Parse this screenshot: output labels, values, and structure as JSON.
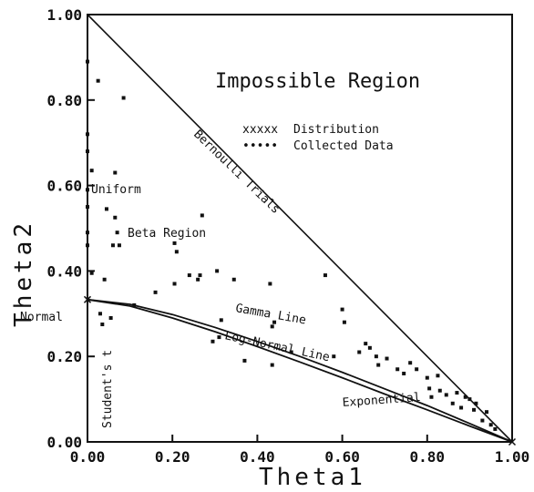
{
  "chart_data": {
    "type": "scatter",
    "xlabel": "Theta1",
    "ylabel": "Theta2",
    "xlim": [
      0,
      1
    ],
    "ylim": [
      0,
      1
    ],
    "xticks": [
      "0.00",
      "0.20",
      "0.40",
      "0.60",
      "0.80",
      "1.00"
    ],
    "yticks": [
      "0.00",
      "0.20",
      "0.40",
      "0.60",
      "0.80",
      "1.00"
    ],
    "grid": false,
    "legend": {
      "placement": "top-right",
      "entries": [
        {
          "marker": "xxxxx",
          "label": "Distribution"
        },
        {
          "marker": "•••••",
          "label": "Collected Data"
        }
      ]
    },
    "annotations": {
      "impossible_region": "Impossible Region",
      "bernoulli": "Bernoulli Trials",
      "uniform": "Uniform",
      "beta_region": "Beta Region",
      "normal": "Normal",
      "gamma": "Gamma Line",
      "lognormal": "Log-Normal Line",
      "students_t": "Student's t",
      "exponential": "Exponential"
    },
    "lines": {
      "bernoulli": [
        [
          0,
          1
        ],
        [
          1,
          0
        ]
      ],
      "gamma": [
        [
          0,
          0.333
        ],
        [
          0.1,
          0.322
        ],
        [
          0.2,
          0.298
        ],
        [
          0.3,
          0.268
        ],
        [
          0.4,
          0.235
        ],
        [
          0.5,
          0.2
        ],
        [
          0.6,
          0.163
        ],
        [
          0.7,
          0.124
        ],
        [
          0.8,
          0.085
        ],
        [
          0.9,
          0.043
        ],
        [
          1,
          0
        ]
      ],
      "lognormal": [
        [
          0,
          0.333
        ],
        [
          0.1,
          0.318
        ],
        [
          0.2,
          0.29
        ],
        [
          0.3,
          0.258
        ],
        [
          0.4,
          0.223
        ],
        [
          0.5,
          0.187
        ],
        [
          0.6,
          0.15
        ],
        [
          0.7,
          0.112
        ],
        [
          0.8,
          0.075
        ],
        [
          0.9,
          0.037
        ],
        [
          1,
          0
        ]
      ]
    },
    "distribution_points": [
      {
        "x": 0.0,
        "y": 0.333
      },
      {
        "x": 1.0,
        "y": 0.0
      }
    ],
    "collected_points": [
      {
        "x": 0.0,
        "y": 0.89
      },
      {
        "x": 0.0,
        "y": 0.72
      },
      {
        "x": 0.0,
        "y": 0.68
      },
      {
        "x": 0.0,
        "y": 0.59
      },
      {
        "x": 0.0,
        "y": 0.55
      },
      {
        "x": 0.0,
        "y": 0.49
      },
      {
        "x": 0.0,
        "y": 0.46
      },
      {
        "x": 0.01,
        "y": 0.635
      },
      {
        "x": 0.01,
        "y": 0.395
      },
      {
        "x": 0.025,
        "y": 0.845
      },
      {
        "x": 0.03,
        "y": 0.3
      },
      {
        "x": 0.035,
        "y": 0.275
      },
      {
        "x": 0.04,
        "y": 0.38
      },
      {
        "x": 0.045,
        "y": 0.545
      },
      {
        "x": 0.055,
        "y": 0.29
      },
      {
        "x": 0.06,
        "y": 0.46
      },
      {
        "x": 0.065,
        "y": 0.63
      },
      {
        "x": 0.065,
        "y": 0.525
      },
      {
        "x": 0.07,
        "y": 0.49
      },
      {
        "x": 0.075,
        "y": 0.46
      },
      {
        "x": 0.085,
        "y": 0.805
      },
      {
        "x": 0.11,
        "y": 0.32
      },
      {
        "x": 0.16,
        "y": 0.35
      },
      {
        "x": 0.205,
        "y": 0.465
      },
      {
        "x": 0.205,
        "y": 0.37
      },
      {
        "x": 0.21,
        "y": 0.445
      },
      {
        "x": 0.24,
        "y": 0.39
      },
      {
        "x": 0.26,
        "y": 0.38
      },
      {
        "x": 0.265,
        "y": 0.39
      },
      {
        "x": 0.27,
        "y": 0.53
      },
      {
        "x": 0.295,
        "y": 0.235
      },
      {
        "x": 0.305,
        "y": 0.4
      },
      {
        "x": 0.31,
        "y": 0.245
      },
      {
        "x": 0.315,
        "y": 0.285
      },
      {
        "x": 0.345,
        "y": 0.38
      },
      {
        "x": 0.37,
        "y": 0.19
      },
      {
        "x": 0.43,
        "y": 0.37
      },
      {
        "x": 0.435,
        "y": 0.27
      },
      {
        "x": 0.435,
        "y": 0.18
      },
      {
        "x": 0.44,
        "y": 0.28
      },
      {
        "x": 0.48,
        "y": 0.21
      },
      {
        "x": 0.56,
        "y": 0.39
      },
      {
        "x": 0.58,
        "y": 0.2
      },
      {
        "x": 0.6,
        "y": 0.31
      },
      {
        "x": 0.605,
        "y": 0.28
      },
      {
        "x": 0.64,
        "y": 0.21
      },
      {
        "x": 0.655,
        "y": 0.23
      },
      {
        "x": 0.665,
        "y": 0.22
      },
      {
        "x": 0.68,
        "y": 0.2
      },
      {
        "x": 0.685,
        "y": 0.18
      },
      {
        "x": 0.705,
        "y": 0.195
      },
      {
        "x": 0.73,
        "y": 0.17
      },
      {
        "x": 0.745,
        "y": 0.16
      },
      {
        "x": 0.76,
        "y": 0.185
      },
      {
        "x": 0.775,
        "y": 0.17
      },
      {
        "x": 0.8,
        "y": 0.15
      },
      {
        "x": 0.805,
        "y": 0.125
      },
      {
        "x": 0.81,
        "y": 0.105
      },
      {
        "x": 0.825,
        "y": 0.155
      },
      {
        "x": 0.83,
        "y": 0.12
      },
      {
        "x": 0.845,
        "y": 0.11
      },
      {
        "x": 0.86,
        "y": 0.09
      },
      {
        "x": 0.87,
        "y": 0.115
      },
      {
        "x": 0.88,
        "y": 0.08
      },
      {
        "x": 0.89,
        "y": 0.105
      },
      {
        "x": 0.9,
        "y": 0.1
      },
      {
        "x": 0.91,
        "y": 0.075
      },
      {
        "x": 0.915,
        "y": 0.09
      },
      {
        "x": 0.93,
        "y": 0.05
      },
      {
        "x": 0.94,
        "y": 0.07
      },
      {
        "x": 0.95,
        "y": 0.04
      },
      {
        "x": 0.96,
        "y": 0.03
      }
    ]
  }
}
